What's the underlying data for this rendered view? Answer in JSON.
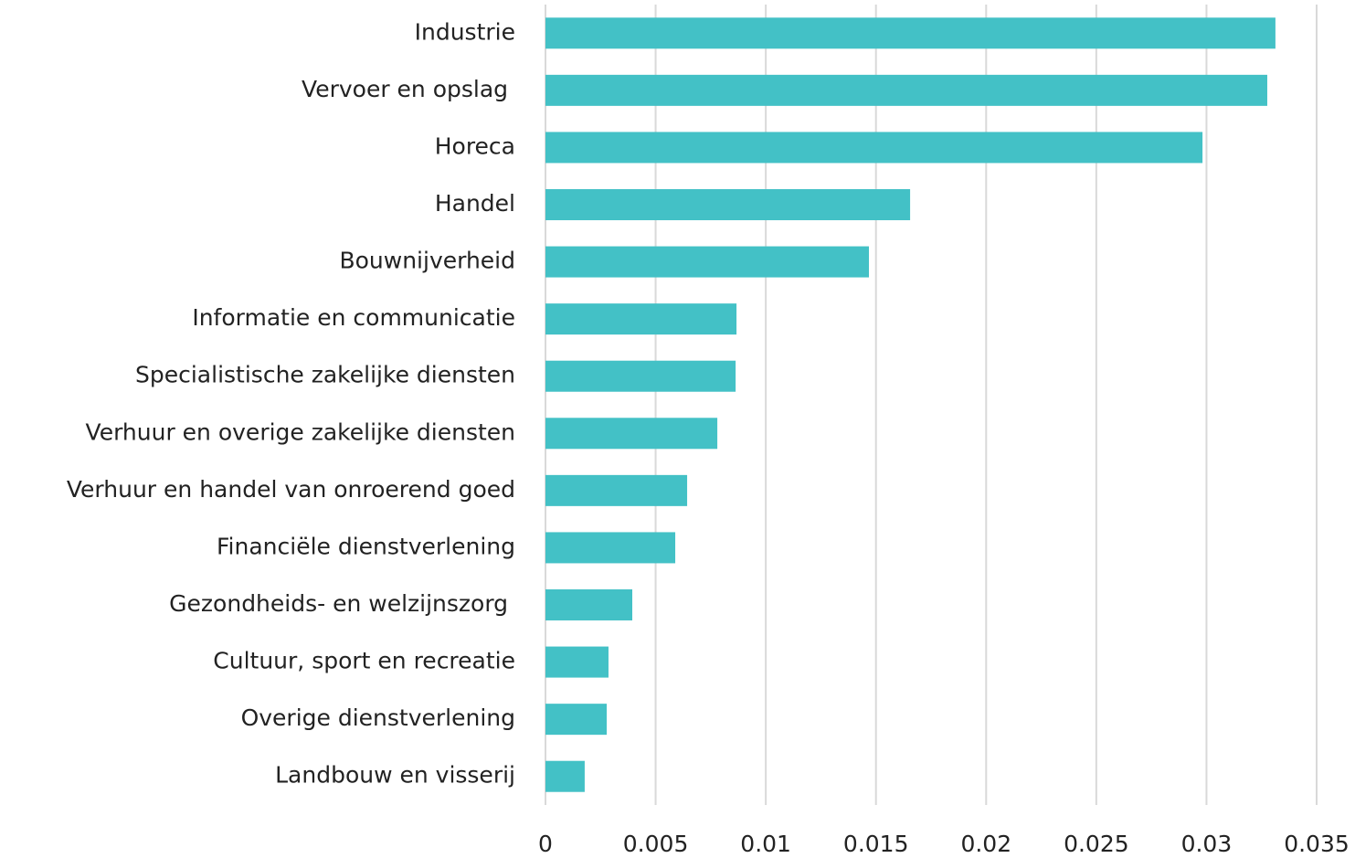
{
  "chart_data": {
    "type": "barh",
    "categories": [
      "Industrie",
      "Vervoer en opslag ",
      "Horeca",
      "Handel",
      "Bouwnijverheid",
      "Informatie en communicatie",
      "Specialistische zakelijke diensten",
      "Verhuur en overige zakelijke diensten",
      "Verhuur en handel van onroerend goed",
      "Financiële dienstverlening",
      "Gezondheids- en welzijnszorg ",
      "Cultuur, sport en recreatie",
      "Overige dienstverlening",
      "Landbouw en visserij"
    ],
    "values": [
      0.03313,
      0.03276,
      0.02982,
      0.01655,
      0.01468,
      0.00867,
      0.00863,
      0.0078,
      0.00643,
      0.00589,
      0.00394,
      0.00286,
      0.00278,
      0.00178
    ],
    "color": "#43c1c6",
    "xlim": [
      0,
      0.035
    ],
    "xticks": [
      0,
      0.005,
      0.01,
      0.015,
      0.02,
      0.025,
      0.03,
      0.035
    ],
    "grid": true
  }
}
